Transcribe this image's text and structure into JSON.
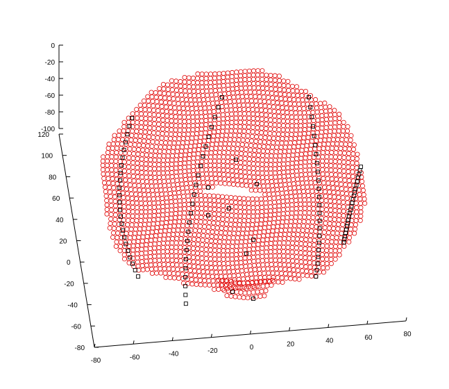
{
  "chart_data": {
    "type": "scatter",
    "title": "",
    "xlabel": "",
    "ylabel": "",
    "zlabel": "",
    "view": "3d",
    "grid": false,
    "x_ticks": [
      "-80",
      "-60",
      "-40",
      "-20",
      "0",
      "20",
      "40",
      "60",
      "80"
    ],
    "y_ticks": [
      "-80",
      "-60",
      "-40",
      "-20",
      "0",
      "20",
      "40",
      "60",
      "80",
      "100",
      "120"
    ],
    "z_ticks": [
      "0",
      "-20",
      "-40",
      "-60",
      "-80",
      "-100"
    ],
    "xlim": [
      -80,
      80
    ],
    "ylim": [
      -80,
      120
    ],
    "zlim": [
      -100,
      0
    ],
    "series": [
      {
        "marker": "circle",
        "color": "#e00000",
        "fill": "none",
        "description_of_shape": "dome surface sampled on dense grid"
      },
      {
        "marker": "square",
        "color": "#000000",
        "fill": "none",
        "description_of_shape": "sparse points along four meridian curves"
      }
    ]
  }
}
